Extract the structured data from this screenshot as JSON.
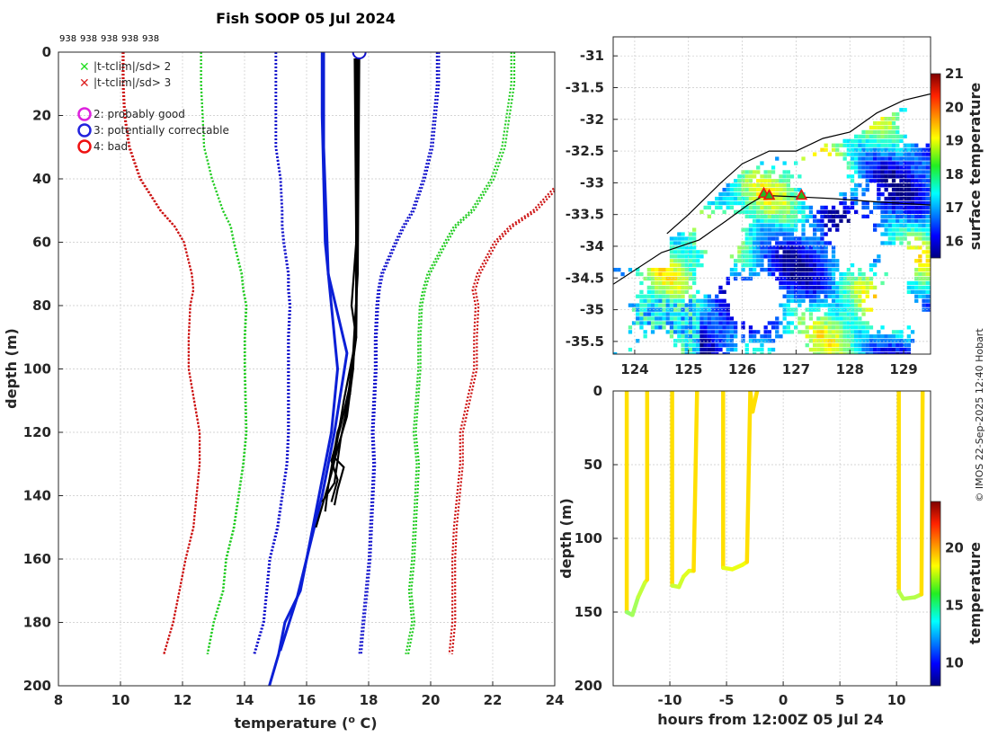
{
  "chart_data": [
    {
      "id": "profile",
      "type": "line",
      "title": "Fish SOOP 05 Jul 2024",
      "top_labels": [
        "938",
        "938",
        "938",
        "938",
        "938"
      ],
      "xlabel": "temperature (",
      "xlabel_sup": "o",
      "xlabel_end": " C)",
      "ylabel": "depth (m)",
      "xlim": [
        8,
        24
      ],
      "ylim": [
        0,
        200
      ],
      "xticks": [
        "8",
        "10",
        "12",
        "14",
        "16",
        "18",
        "20",
        "22",
        "24"
      ],
      "yticks": [
        "0",
        "20",
        "40",
        "60",
        "80",
        "100",
        "120",
        "140",
        "160",
        "180",
        "200"
      ],
      "legend": [
        {
          "marker": "x",
          "color": "#22dd22",
          "label": "|t-tclim|/sd> 2"
        },
        {
          "marker": "x",
          "color": "#dd2222",
          "label": "|t-tclim|/sd> 3"
        },
        {
          "marker": "o",
          "color": "#dd22dd",
          "label": "2: probably good"
        },
        {
          "marker": "o",
          "color": "#2222dd",
          "label": "3: potentially correctable"
        },
        {
          "marker": "o",
          "color": "#ee1111",
          "label": "4: bad"
        }
      ],
      "climatology": {
        "depth": [
          0,
          10,
          20,
          30,
          40,
          50,
          55,
          60,
          70,
          75,
          80,
          90,
          100,
          120,
          130,
          150,
          160,
          170,
          180,
          190
        ],
        "mean": [
          17.6,
          17.6,
          17.55,
          17.5,
          17.45,
          17.3,
          17.15,
          17.05,
          16.9,
          16.85,
          16.85,
          16.8,
          16.8,
          16.75,
          16.75,
          16.55,
          16.4,
          16.3,
          16.2,
          16.0
        ],
        "series": [
          {
            "name": "-3sd",
            "color": "#cc1111",
            "offsets": [
              -7.5,
              -7.5,
              -7.4,
              -7.2,
              -6.8,
              -6.0,
              -5.4,
              -5.0,
              -4.6,
              -4.5,
              -4.6,
              -4.6,
              -4.6,
              -4.2,
              -4.2,
              -4.2,
              -4.3,
              -4.4,
              -4.5,
              -4.6
            ]
          },
          {
            "name": "-2sd",
            "color": "#22cc22",
            "offsets": [
              -5.0,
              -5.0,
              -4.9,
              -4.8,
              -4.5,
              -4.0,
              -3.6,
              -3.4,
              -3.0,
              -2.9,
              -2.8,
              -2.8,
              -2.8,
              -2.7,
              -2.8,
              -2.9,
              -3.0,
              -3.0,
              -3.2,
              -3.2
            ]
          },
          {
            "name": "-1sd",
            "color": "#1111cc",
            "offsets": [
              -2.6,
              -2.6,
              -2.55,
              -2.5,
              -2.3,
              -2.1,
              -1.95,
              -1.8,
              -1.5,
              -1.45,
              -1.4,
              -1.4,
              -1.4,
              -1.35,
              -1.4,
              -1.5,
              -1.6,
              -1.6,
              -1.6,
              -1.7
            ]
          },
          {
            "name": "+1sd",
            "color": "#1111cc",
            "offsets": [
              2.6,
              2.6,
              2.55,
              2.5,
              2.3,
              2.1,
              1.95,
              1.8,
              1.5,
              1.45,
              1.4,
              1.4,
              1.4,
              1.35,
              1.4,
              1.5,
              1.6,
              1.6,
              1.6,
              1.7
            ]
          },
          {
            "name": "+2sd",
            "color": "#22cc22",
            "offsets": [
              5.0,
              5.0,
              4.9,
              4.8,
              4.5,
              4.0,
              3.6,
              3.4,
              3.0,
              2.9,
              2.8,
              2.8,
              2.8,
              2.7,
              2.8,
              2.9,
              3.0,
              3.0,
              3.2,
              3.2
            ]
          },
          {
            "name": "+3sd",
            "color": "#cc1111",
            "offsets": [
              7.5,
              7.5,
              7.4,
              7.2,
              6.8,
              6.0,
              5.4,
              5.0,
              4.6,
              4.5,
              4.6,
              4.6,
              4.6,
              4.2,
              4.2,
              4.2,
              4.3,
              4.4,
              4.5,
              4.6
            ]
          }
        ]
      },
      "profiles": [
        {
          "color": "#0b1fd6",
          "points": [
            [
              16.5,
              0
            ],
            [
              16.5,
              20
            ],
            [
              16.6,
              60
            ],
            [
              16.8,
              80
            ],
            [
              17.0,
              100
            ],
            [
              16.8,
              120
            ],
            [
              16.4,
              140
            ],
            [
              16.1,
              155
            ],
            [
              15.8,
              170
            ],
            [
              15.3,
              180
            ],
            [
              15.1,
              190
            ],
            [
              14.8,
              200
            ]
          ]
        },
        {
          "color": "#0b1fd6",
          "points": [
            [
              16.55,
              0
            ],
            [
              16.55,
              30
            ],
            [
              16.7,
              70
            ],
            [
              17.3,
              95
            ],
            [
              16.9,
              120
            ],
            [
              16.5,
              140
            ],
            [
              16.2,
              152
            ],
            [
              15.7,
              172
            ],
            [
              15.15,
              189
            ]
          ]
        },
        {
          "color": "#000000",
          "points": [
            [
              17.6,
              2
            ],
            [
              17.6,
              40
            ],
            [
              17.6,
              80
            ],
            [
              17.5,
              100
            ],
            [
              17.3,
              115
            ],
            [
              17.0,
              125
            ],
            [
              16.8,
              133
            ],
            [
              16.6,
              140
            ],
            [
              16.3,
              150
            ]
          ]
        },
        {
          "color": "#000000",
          "points": [
            [
              17.65,
              2
            ],
            [
              17.65,
              50
            ],
            [
              17.6,
              90
            ],
            [
              17.4,
              105
            ],
            [
              17.1,
              118
            ],
            [
              16.8,
              129
            ],
            [
              17.0,
              135
            ],
            [
              16.8,
              142
            ]
          ]
        },
        {
          "color": "#000000",
          "points": [
            [
              17.55,
              2
            ],
            [
              17.6,
              60
            ],
            [
              17.45,
              80
            ],
            [
              17.6,
              90
            ],
            [
              17.2,
              110
            ],
            [
              16.9,
              128
            ],
            [
              17.2,
              131
            ],
            [
              17.0,
              138
            ],
            [
              16.9,
              143
            ]
          ]
        },
        {
          "color": "#000000",
          "points": [
            [
              17.7,
              2
            ],
            [
              17.65,
              70
            ],
            [
              17.5,
              95
            ],
            [
              17.3,
              112
            ],
            [
              17.1,
              122
            ],
            [
              16.9,
              136
            ],
            [
              16.5,
              142
            ]
          ]
        },
        {
          "color": "#000000",
          "points": [
            [
              17.6,
              2
            ],
            [
              17.6,
              85
            ],
            [
              17.4,
              108
            ],
            [
              17.0,
              120
            ],
            [
              16.7,
              137
            ],
            [
              16.6,
              145
            ]
          ]
        }
      ],
      "flag_marker": {
        "temperature": 17.7,
        "depth": 0,
        "color": "#1111cc"
      }
    },
    {
      "id": "map",
      "type": "heatmap",
      "xlim": [
        123.6,
        129.5
      ],
      "ylim": [
        -35.7,
        -30.7
      ],
      "xticks": [
        "124",
        "125",
        "126",
        "127",
        "128",
        "129"
      ],
      "yticks": [
        "-31",
        "-31.5",
        "-32",
        "-32.5",
        "-33",
        "-33.5",
        "-34",
        "-34.5",
        "-35",
        "-35.5"
      ],
      "colorbar_label": "surface temperature",
      "colorbar_ticks": [
        "16",
        "17",
        "18",
        "19",
        "20",
        "21"
      ],
      "colorbar_range": [
        15.5,
        21
      ],
      "coastline": [
        [
          124.6,
          -33.8
        ],
        [
          125.0,
          -33.5
        ],
        [
          125.6,
          -33.0
        ],
        [
          126.0,
          -32.7
        ],
        [
          126.5,
          -32.5
        ],
        [
          127.0,
          -32.5
        ],
        [
          127.5,
          -32.3
        ],
        [
          128.0,
          -32.2
        ],
        [
          128.5,
          -31.9
        ],
        [
          129.0,
          -31.7
        ],
        [
          129.5,
          -31.6
        ]
      ],
      "track": [
        [
          123.6,
          -34.6
        ],
        [
          124.5,
          -34.1
        ],
        [
          125.2,
          -33.9
        ],
        [
          125.7,
          -33.6
        ],
        [
          126.1,
          -33.35
        ],
        [
          126.4,
          -33.2
        ],
        [
          127.0,
          -33.22
        ],
        [
          127.7,
          -33.25
        ],
        [
          128.5,
          -33.3
        ],
        [
          129.5,
          -33.35
        ]
      ],
      "markers": [
        [
          126.4,
          -33.17
        ],
        [
          126.5,
          -33.2
        ],
        [
          127.1,
          -33.2
        ]
      ]
    },
    {
      "id": "section",
      "type": "line",
      "xlabel": "hours from 12:00Z 05 Jul 24",
      "ylabel": "depth (m)",
      "xlim": [
        -15,
        13
      ],
      "ylim": [
        0,
        200
      ],
      "xticks": [
        "-10",
        "-5",
        "0",
        "5",
        "10"
      ],
      "yticks": [
        "0",
        "50",
        "100",
        "150",
        "200"
      ],
      "colorbar_label": "temperature",
      "colorbar_ticks": [
        "10",
        "15",
        "20"
      ],
      "colorbar_range": [
        8,
        24
      ],
      "casts": [
        {
          "down": [
            [
              -13.8,
              0
            ],
            [
              -13.8,
              150
            ],
            [
              -13.3,
              152
            ],
            [
              -12.8,
              140
            ],
            [
              -12.2,
              130
            ],
            [
              -12.0,
              128
            ]
          ],
          "up": [
            [
              -12.0,
              128
            ],
            [
              -12.0,
              0
            ]
          ]
        },
        {
          "down": [
            [
              -9.8,
              0
            ],
            [
              -9.8,
              132
            ],
            [
              -9.2,
              133
            ],
            [
              -8.8,
              126
            ],
            [
              -8.3,
              122
            ],
            [
              -7.9,
              122
            ]
          ],
          "up": [
            [
              -7.9,
              122
            ],
            [
              -7.6,
              0
            ]
          ]
        },
        {
          "down": [
            [
              -5.3,
              0
            ],
            [
              -5.3,
              120
            ],
            [
              -4.5,
              121
            ],
            [
              -3.6,
              118
            ],
            [
              -3.2,
              116
            ]
          ],
          "up": [
            [
              -3.2,
              116
            ],
            [
              -2.9,
              0
            ]
          ]
        },
        {
          "down": [
            [
              -2.9,
              0
            ],
            [
              -2.7,
              14
            ]
          ],
          "up": [
            [
              -2.7,
              14
            ],
            [
              -2.3,
              0
            ]
          ]
        },
        {
          "down": [
            [
              10.2,
              0
            ],
            [
              10.2,
              136
            ],
            [
              10.6,
              141
            ],
            [
              11.6,
              140
            ],
            [
              12.2,
              138
            ]
          ],
          "up": [
            [
              12.2,
              138
            ],
            [
              12.3,
              0
            ]
          ]
        }
      ]
    }
  ],
  "credit": "© IMOS 22-Sep-2025 12:40 Hobart"
}
